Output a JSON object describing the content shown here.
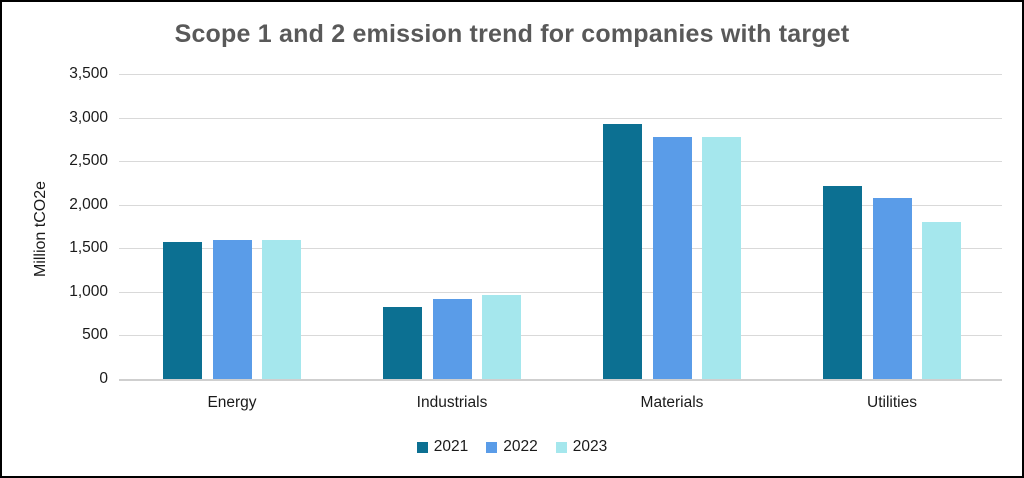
{
  "window": {
    "background_color": "#ffffff",
    "frame_border_color": "#000000"
  },
  "chart_data": {
    "type": "bar",
    "title": "Scope 1 and 2 emission trend for companies with target",
    "title_color": "#595959",
    "xlabel": "",
    "ylabel": "Million tCO2e",
    "categories": [
      "Energy",
      "Industrials",
      "Materials",
      "Utilities"
    ],
    "series": [
      {
        "name": "2021",
        "color": "#0C7092",
        "values": [
          1570,
          830,
          2930,
          2220
        ]
      },
      {
        "name": "2022",
        "color": "#5A9CE8",
        "values": [
          1590,
          920,
          2780,
          2080
        ]
      },
      {
        "name": "2023",
        "color": "#A5E7ED",
        "values": [
          1590,
          960,
          2780,
          1800
        ]
      }
    ],
    "ylim": [
      0,
      3500
    ],
    "ytick_values": [
      0,
      500,
      1000,
      1500,
      2000,
      2500,
      3000,
      3500
    ],
    "ytick_labels": [
      "0",
      "500",
      "1,000",
      "1,500",
      "2,000",
      "2,500",
      "3,000",
      "3,500"
    ],
    "grid": "horizontal",
    "gridline_color": "#d9d9d9",
    "axis_line_color": "#cfcfcf",
    "legend_position": "bottom-center",
    "legend_labels": [
      "2021",
      "2022",
      "2023"
    ]
  }
}
